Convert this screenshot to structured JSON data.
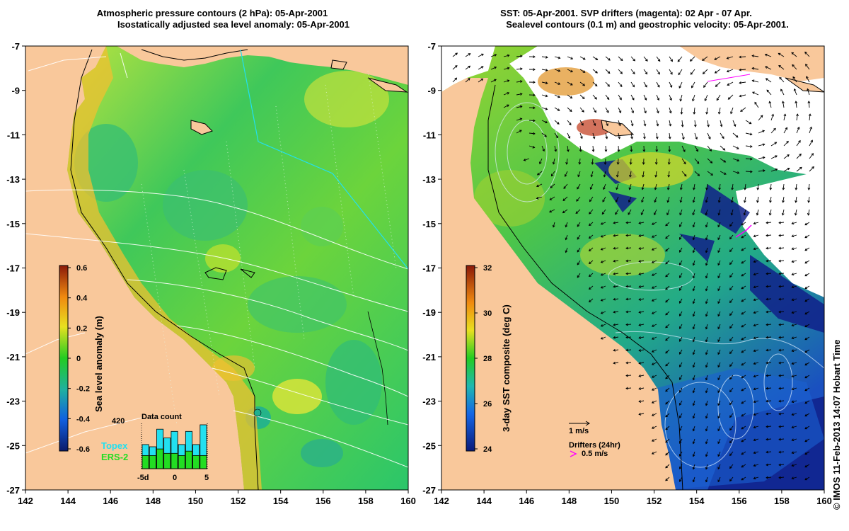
{
  "left_panel": {
    "title_line1": "Atmospheric pressure contours (2 hPa): 05-Apr-2001",
    "title_line2": "Isostatically adjusted sea level anomaly: 05-Apr-2001",
    "x_ticks": [
      "142",
      "144",
      "146",
      "148",
      "150",
      "152",
      "154",
      "156",
      "158",
      "160"
    ],
    "y_ticks": [
      "-7",
      "-9",
      "-11",
      "-13",
      "-15",
      "-17",
      "-19",
      "-21",
      "-23",
      "-25",
      "-27"
    ],
    "colorbar": {
      "label": "Sea level anomaly (m)",
      "ticks": [
        "0.6",
        "0.4",
        "0.2",
        "0",
        "-0.2",
        "-0.4",
        "-0.6"
      ]
    },
    "data_count": {
      "title": "Data count",
      "ymax_label": "420",
      "x_ticks": [
        "-5d",
        "0",
        "5"
      ],
      "legend_topex": "Topex",
      "legend_ers2": "ERS-2",
      "topex_color": "#22e0f0",
      "ers2_color": "#22dd22",
      "topex_values": [
        0.55,
        0.5,
        0.9,
        0.7,
        0.85,
        0.55,
        0.85,
        0.55,
        1.0
      ],
      "ers2_values": [
        0.3,
        0.3,
        0.45,
        0.35,
        0.35,
        0.3,
        0.4,
        0.3,
        0.3
      ]
    }
  },
  "right_panel": {
    "title_line1": "SST: 05-Apr-2001. SVP drifters (magenta): 02 Apr - 07 Apr.",
    "title_line2": "Sealevel contours (0.1 m) and geostrophic velocity: 05-Apr-2001.",
    "x_ticks": [
      "142",
      "144",
      "146",
      "148",
      "150",
      "152",
      "154",
      "156",
      "158",
      "160"
    ],
    "y_ticks": [
      "-7",
      "-9",
      "-11",
      "-13",
      "-15",
      "-17",
      "-19",
      "-21",
      "-23",
      "-25",
      "-27"
    ],
    "colorbar": {
      "label": "3-day SST composite (deg C)",
      "ticks": [
        "32",
        "30",
        "28",
        "26",
        "24"
      ]
    },
    "velocity_scale_label": "1 m/s",
    "drifters_label": "Drifters (24hr)",
    "drifter_speed_label": "0.5 m/s"
  },
  "credit": "© IMOS 11-Feb-2013 14:07 Hobart Time",
  "colors": {
    "land": "#f9c89b",
    "sla_low": "#1a2a8a",
    "sla_mid": "#22cc22",
    "sla_high": "#8b1a0a",
    "sst_cloud": "#ffffff"
  }
}
